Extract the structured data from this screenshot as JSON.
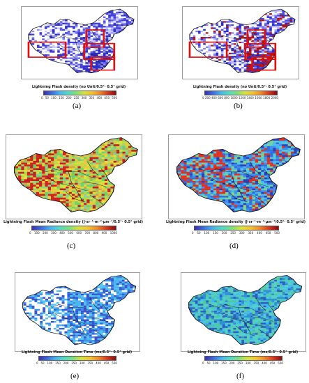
{
  "panels": [
    {
      "id": "a",
      "label": "(a)",
      "colorbar_title": "Lightning Flash density (no Unit/0.5°· 0.5° grid)",
      "ticks": [
        "0",
        "50",
        "100",
        "150",
        "200",
        "250",
        "300",
        "350",
        "400",
        "450",
        "500"
      ],
      "scheme": "density",
      "has_boxes": true
    },
    {
      "id": "b",
      "label": "(b)",
      "colorbar_title": "Lightning Flash density (no Unit/0.5°· 0.5° grid)",
      "ticks": [
        "0",
        "200",
        "400",
        "600",
        "800",
        "1000",
        "1200",
        "1400",
        "1600",
        "1800",
        "2000"
      ],
      "scheme": "density2",
      "has_boxes": true
    },
    {
      "id": "c",
      "label": "(c)",
      "colorbar_title": "Lightning Flash Mean Radiance density (J·sr⁻¹·m⁻²·μm⁻¹/0.5°· 0.5° grid)",
      "ticks": [
        "0",
        "100",
        "200",
        "300",
        "400",
        "500",
        "600",
        "700",
        "800",
        "900",
        "1000"
      ],
      "scheme": "radiance",
      "has_boxes": false
    },
    {
      "id": "d",
      "label": "(d)",
      "colorbar_title": "Lightning Flash Mean Radiance density (J·sr⁻¹·m⁻²·μm⁻¹/0.5°· 0.5° grid)",
      "ticks": [
        "0",
        "50",
        "100",
        "150",
        "200",
        "250",
        "300",
        "350",
        "400",
        "450",
        "500"
      ],
      "scheme": "radiance2",
      "has_boxes": false
    },
    {
      "id": "e",
      "label": "(e)",
      "colorbar_title": "Lightning Flash Mean Duration Time (ms/0.5°· 0.5° grid)",
      "ticks": [
        "0",
        "50",
        "100",
        "150",
        "200",
        "250",
        "300",
        "350",
        "400",
        "450",
        "500"
      ],
      "scheme": "duration",
      "has_boxes": false
    },
    {
      "id": "f",
      "label": "(f)",
      "colorbar_title": "Lightning Flash Mean Duration Time (ms/0.5°· 0.5° grid)",
      "ticks": [
        "0",
        "50",
        "100",
        "150",
        "200",
        "250",
        "300",
        "350",
        "400",
        "450",
        "500"
      ],
      "scheme": "duration2",
      "has_boxes": false
    }
  ],
  "colors": {
    "colorbar_gradient": [
      "#3a2fb0",
      "#3f6ee0",
      "#49b6ee",
      "#52dcc4",
      "#7ee07a",
      "#d7e33a",
      "#f4c430",
      "#f08a2a",
      "#d83a20",
      "#8c0a10"
    ],
    "border": "#111111",
    "box": "#e01010"
  }
}
